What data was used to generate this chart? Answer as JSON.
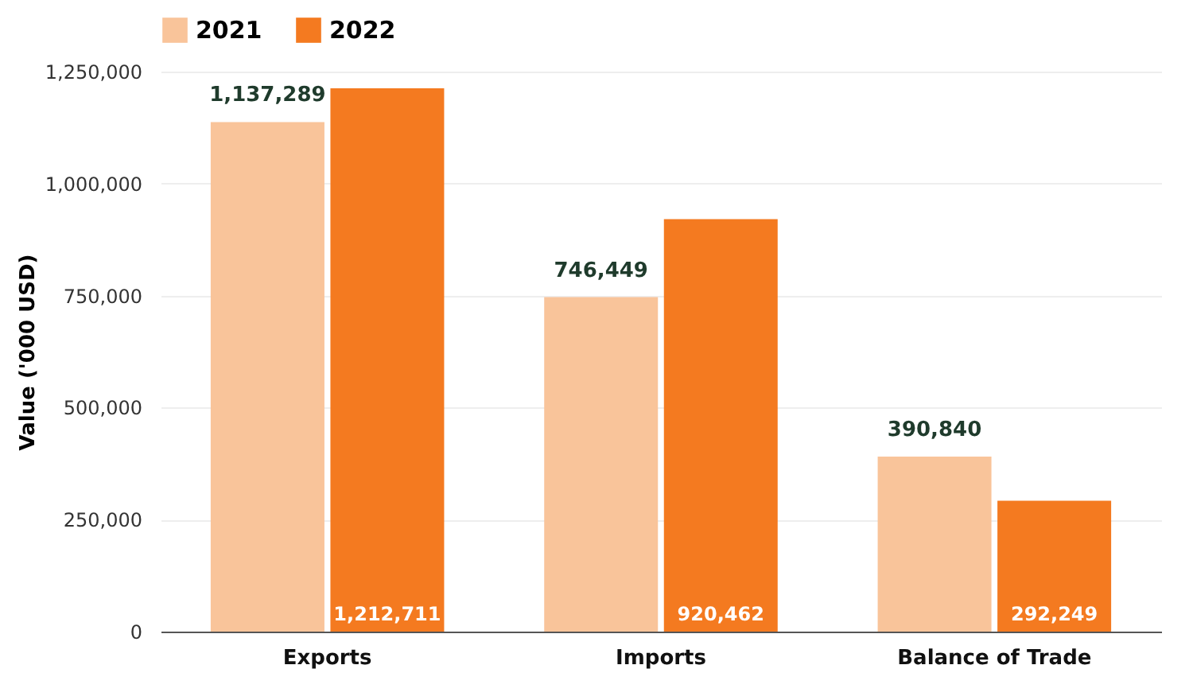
{
  "chart_data": {
    "type": "bar",
    "ylabel": "Value ('000 USD)",
    "categories": [
      "Exports",
      "Imports",
      "Balance of Trade"
    ],
    "series": [
      {
        "name": "2021",
        "color": "#f9c49a",
        "values": [
          1137289,
          746449,
          390840
        ],
        "value_labels": [
          "1,137,289",
          "746,449",
          "390,840"
        ]
      },
      {
        "name": "2022",
        "color": "#f47a20",
        "values": [
          1212711,
          920462,
          292249
        ],
        "value_labels": [
          "1,212,711",
          "920,462",
          "292,249"
        ]
      }
    ],
    "ylim": [
      0,
      1250000
    ],
    "yticks": [
      0,
      {
        "value": 250000,
        "label": "250,000"
      },
      {
        "value": 500000,
        "label": "500,000"
      },
      {
        "value": 750000,
        "label": "750,000"
      },
      {
        "value": 1000000,
        "label": "1,000,000"
      },
      {
        "value": 1250000,
        "label": "1,250,000"
      }
    ],
    "grid": "y",
    "legend": "top"
  }
}
